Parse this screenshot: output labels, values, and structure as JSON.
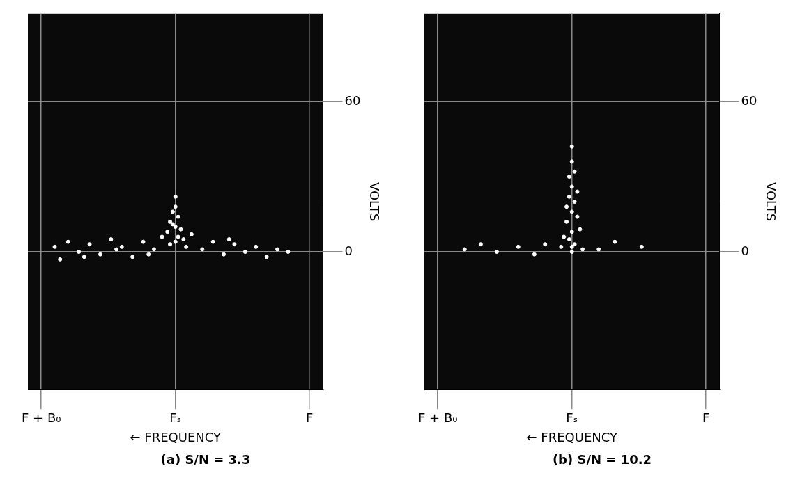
{
  "chart_data": [
    {
      "type": "scatter",
      "title": "(a) S/N = 3.3",
      "x_label": "← FREQUENCY",
      "y_label": "VOLTS",
      "x": [
        0.95,
        0.9,
        0.86,
        0.82,
        0.78,
        0.74,
        0.7,
        0.66,
        0.62,
        0.58,
        0.55,
        0.53,
        0.52,
        0.51,
        0.5,
        0.5,
        0.5,
        0.49,
        0.49,
        0.48,
        0.5,
        0.51,
        0.47,
        0.52,
        0.46,
        0.44,
        0.4,
        0.36,
        0.32,
        0.28,
        0.24,
        0.2,
        0.16,
        0.12,
        0.08,
        0.93,
        0.84,
        0.72,
        0.6,
        0.3
      ],
      "values": [
        2,
        4,
        0,
        3,
        -1,
        5,
        2,
        -2,
        4,
        1,
        6,
        8,
        12,
        16,
        22,
        18,
        10,
        14,
        6,
        9,
        4,
        11,
        5,
        3,
        2,
        7,
        1,
        4,
        -1,
        3,
        0,
        2,
        -2,
        1,
        0,
        -3,
        -2,
        1,
        -1,
        5
      ],
      "color": "#ffffff",
      "marker": "circle",
      "xlim": [
        1.05,
        -0.05
      ],
      "xticks": [
        {
          "value": 1,
          "label": "F + B₀"
        },
        {
          "value": 0.5,
          "label": "Fₛ"
        },
        {
          "value": 0,
          "label": "F"
        }
      ],
      "ylim": [
        -55,
        95
      ],
      "yticks": [
        0,
        60
      ],
      "grid": true
    },
    {
      "type": "scatter",
      "title": "(b) S/N = 10.2",
      "x_label": "← FREQUENCY",
      "y_label": "VOLTS",
      "x": [
        0.5,
        0.5,
        0.51,
        0.49,
        0.5,
        0.51,
        0.49,
        0.5,
        0.52,
        0.48,
        0.5,
        0.51,
        0.49,
        0.53,
        0.47,
        0.5,
        0.52,
        0.48,
        0.5,
        0.54,
        0.46,
        0.9,
        0.84,
        0.78,
        0.7,
        0.64,
        0.6,
        0.4,
        0.34,
        0.24
      ],
      "values": [
        42,
        36,
        30,
        32,
        26,
        22,
        20,
        16,
        12,
        14,
        8,
        5,
        3,
        6,
        9,
        2,
        18,
        24,
        0,
        2,
        1,
        1,
        3,
        0,
        2,
        -1,
        3,
        1,
        4,
        2
      ],
      "color": "#ffffff",
      "marker": "circle",
      "xlim": [
        1.05,
        -0.05
      ],
      "xticks": [
        {
          "value": 1,
          "label": "F + B₀"
        },
        {
          "value": 0.5,
          "label": "Fₛ"
        },
        {
          "value": 0,
          "label": "F"
        }
      ],
      "ylim": [
        -55,
        95
      ],
      "yticks": [
        0,
        60
      ],
      "grid": true
    }
  ]
}
